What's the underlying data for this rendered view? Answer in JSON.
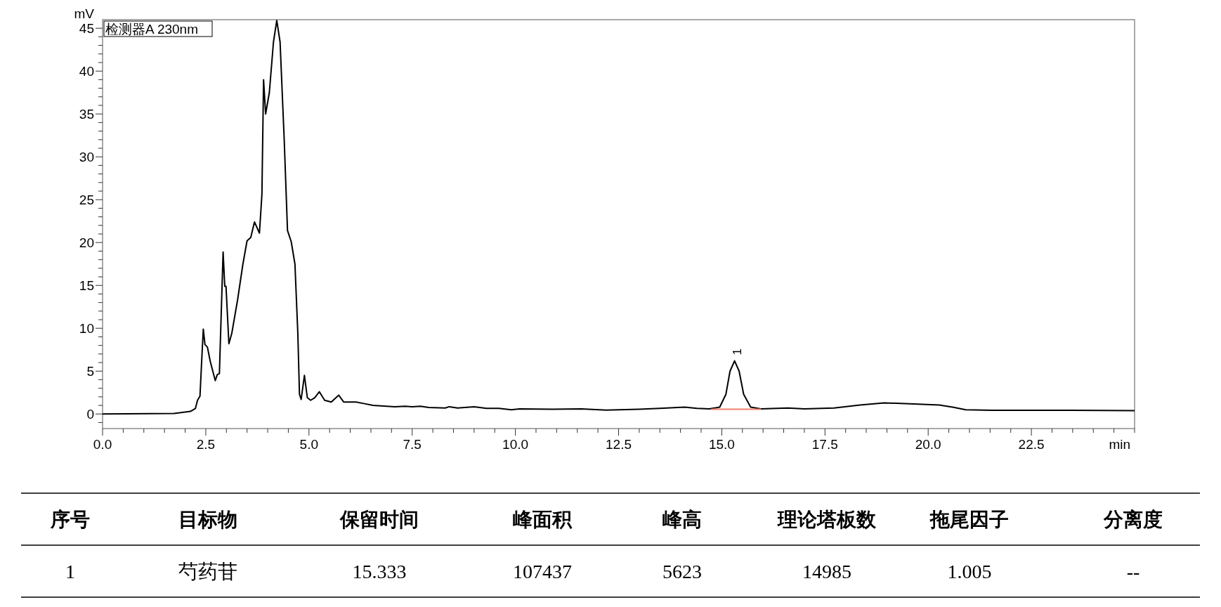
{
  "chart_data": {
    "type": "line",
    "xlabel": "min",
    "ylabel": "mV",
    "xlim": [
      0,
      25
    ],
    "ylim": [
      -1.7,
      46
    ],
    "xticks": [
      {
        "value": 0,
        "label": "0.0"
      },
      {
        "value": 0.5,
        "label": null
      },
      {
        "value": 1,
        "label": null
      },
      {
        "value": 1.5,
        "label": null
      },
      {
        "value": 2,
        "label": null
      },
      {
        "value": 2.5,
        "label": "2.5"
      },
      {
        "value": 3,
        "label": null
      },
      {
        "value": 3.5,
        "label": null
      },
      {
        "value": 4,
        "label": null
      },
      {
        "value": 4.5,
        "label": null
      },
      {
        "value": 5,
        "label": "5.0"
      },
      {
        "value": 5.5,
        "label": null
      },
      {
        "value": 6,
        "label": null
      },
      {
        "value": 6.5,
        "label": null
      },
      {
        "value": 7,
        "label": null
      },
      {
        "value": 7.5,
        "label": "7.5"
      },
      {
        "value": 8,
        "label": null
      },
      {
        "value": 8.5,
        "label": null
      },
      {
        "value": 9,
        "label": null
      },
      {
        "value": 9.5,
        "label": null
      },
      {
        "value": 10,
        "label": "10.0"
      },
      {
        "value": 10.5,
        "label": null
      },
      {
        "value": 11,
        "label": null
      },
      {
        "value": 11.5,
        "label": null
      },
      {
        "value": 12,
        "label": null
      },
      {
        "value": 12.5,
        "label": "12.5"
      },
      {
        "value": 13,
        "label": null
      },
      {
        "value": 13.5,
        "label": null
      },
      {
        "value": 14,
        "label": null
      },
      {
        "value": 14.5,
        "label": null
      },
      {
        "value": 15,
        "label": "15.0"
      },
      {
        "value": 15.5,
        "label": null
      },
      {
        "value": 16,
        "label": null
      },
      {
        "value": 16.5,
        "label": null
      },
      {
        "value": 17,
        "label": null
      },
      {
        "value": 17.5,
        "label": "17.5"
      },
      {
        "value": 18,
        "label": null
      },
      {
        "value": 18.5,
        "label": null
      },
      {
        "value": 19,
        "label": null
      },
      {
        "value": 19.5,
        "label": null
      },
      {
        "value": 20,
        "label": "20.0"
      },
      {
        "value": 20.5,
        "label": null
      },
      {
        "value": 21,
        "label": null
      },
      {
        "value": 21.5,
        "label": null
      },
      {
        "value": 22,
        "label": null
      },
      {
        "value": 22.5,
        "label": "22.5"
      },
      {
        "value": 23,
        "label": null
      },
      {
        "value": 23.5,
        "label": null
      },
      {
        "value": 24,
        "label": null
      },
      {
        "value": 24.5,
        "label": null
      },
      {
        "value": 25,
        "label": null
      }
    ],
    "yticks": [
      {
        "value": -1,
        "label": null
      },
      0,
      {
        "value": 1,
        "label": null
      },
      {
        "value": 2,
        "label": null
      },
      {
        "value": 3,
        "label": null
      },
      {
        "value": 4,
        "label": null
      },
      5,
      {
        "value": 6,
        "label": null
      },
      {
        "value": 7,
        "label": null
      },
      {
        "value": 8,
        "label": null
      },
      {
        "value": 9,
        "label": null
      },
      10,
      {
        "value": 11,
        "label": null
      },
      {
        "value": 12,
        "label": null
      },
      {
        "value": 13,
        "label": null
      },
      {
        "value": 14,
        "label": null
      },
      15,
      {
        "value": 16,
        "label": null
      },
      {
        "value": 17,
        "label": null
      },
      {
        "value": 18,
        "label": null
      },
      {
        "value": 19,
        "label": null
      },
      20,
      {
        "value": 21,
        "label": null
      },
      {
        "value": 22,
        "label": null
      },
      {
        "value": 23,
        "label": null
      },
      {
        "value": 24,
        "label": null
      },
      25,
      {
        "value": 26,
        "label": null
      },
      {
        "value": 27,
        "label": null
      },
      {
        "value": 28,
        "label": null
      },
      {
        "value": 29,
        "label": null
      },
      30,
      {
        "value": 31,
        "label": null
      },
      {
        "value": 32,
        "label": null
      },
      {
        "value": 33,
        "label": null
      },
      {
        "value": 34,
        "label": null
      },
      35,
      {
        "value": 36,
        "label": null
      },
      {
        "value": 37,
        "label": null
      },
      {
        "value": 38,
        "label": null
      },
      {
        "value": 39,
        "label": null
      },
      40,
      {
        "value": 41,
        "label": null
      },
      {
        "value": 42,
        "label": null
      },
      {
        "value": 43,
        "label": null
      },
      {
        "value": 44,
        "label": null
      },
      45
    ],
    "series": [
      {
        "color": "#000000",
        "x": [
          0,
          1.73,
          2.13,
          2.25,
          2.3,
          2.36,
          2.4,
          2.44,
          2.48,
          2.54,
          2.61,
          2.73,
          2.78,
          2.83,
          2.88,
          2.92,
          2.96,
          2.99,
          3.06,
          3.13,
          3.27,
          3.4,
          3.5,
          3.59,
          3.68,
          3.8,
          3.86,
          3.9,
          3.95,
          4.04,
          4.14,
          4.22,
          4.3,
          4.4,
          4.48,
          4.57,
          4.66,
          4.73,
          4.77,
          4.81,
          4.89,
          4.96,
          5.04,
          5.14,
          5.25,
          5.38,
          5.54,
          5.72,
          5.84,
          6.14,
          6.35,
          6.55,
          7.08,
          7.33,
          7.5,
          7.7,
          7.9,
          8.3,
          8.4,
          8.6,
          9.0,
          9.3,
          9.6,
          9.9,
          10.1,
          10.9,
          11.6,
          12.2,
          13.0,
          13.5,
          14.1,
          14.4,
          14.7,
          14.95,
          15.1,
          15.2,
          15.31,
          15.42,
          15.53,
          15.7,
          15.95,
          16.6,
          17.0,
          17.72,
          18.35,
          18.93,
          19.76,
          20.27,
          20.59,
          20.91,
          21.54,
          23.46,
          25.0
        ],
        "values": [
          0,
          0.06,
          0.3,
          0.65,
          1.6,
          2.1,
          6.1,
          9.9,
          8.1,
          7.8,
          6.1,
          3.9,
          4.6,
          4.7,
          12.6,
          18.9,
          14.9,
          14.9,
          8.2,
          9.4,
          13.3,
          17.5,
          20.2,
          20.6,
          22.4,
          21.1,
          25.6,
          39.0,
          35.0,
          37.5,
          43.4,
          45.9,
          43.4,
          32.0,
          21.4,
          20.1,
          17.5,
          9.4,
          2.3,
          1.7,
          4.5,
          1.9,
          1.6,
          1.9,
          2.6,
          1.6,
          1.4,
          2.2,
          1.4,
          1.4,
          1.2,
          1.0,
          0.85,
          0.9,
          0.85,
          0.9,
          0.75,
          0.7,
          0.85,
          0.7,
          0.85,
          0.65,
          0.65,
          0.5,
          0.6,
          0.55,
          0.6,
          0.45,
          0.55,
          0.65,
          0.8,
          0.65,
          0.6,
          0.8,
          2.3,
          5.0,
          6.2,
          5.0,
          2.3,
          0.8,
          0.6,
          0.7,
          0.6,
          0.7,
          1.05,
          1.3,
          1.15,
          1.05,
          0.8,
          0.5,
          0.43,
          0.43,
          0.4
        ]
      },
      {
        "color": "#f08070",
        "x": [
          14.75,
          15.95
        ],
        "values": [
          0.55,
          0.55
        ]
      }
    ],
    "annotations": [
      "检测器A 230nm",
      {
        "text": "1",
        "x": 15.333,
        "y": 6.2
      },
      "序号",
      "目标物",
      "保留时间",
      "峰面积",
      "峰高",
      "理论塔板数",
      "拖尾因子",
      "分离度",
      "1",
      "芍药苷",
      "15.333",
      "107437",
      "5623",
      "14985",
      "1.005",
      "--"
    ]
  }
}
